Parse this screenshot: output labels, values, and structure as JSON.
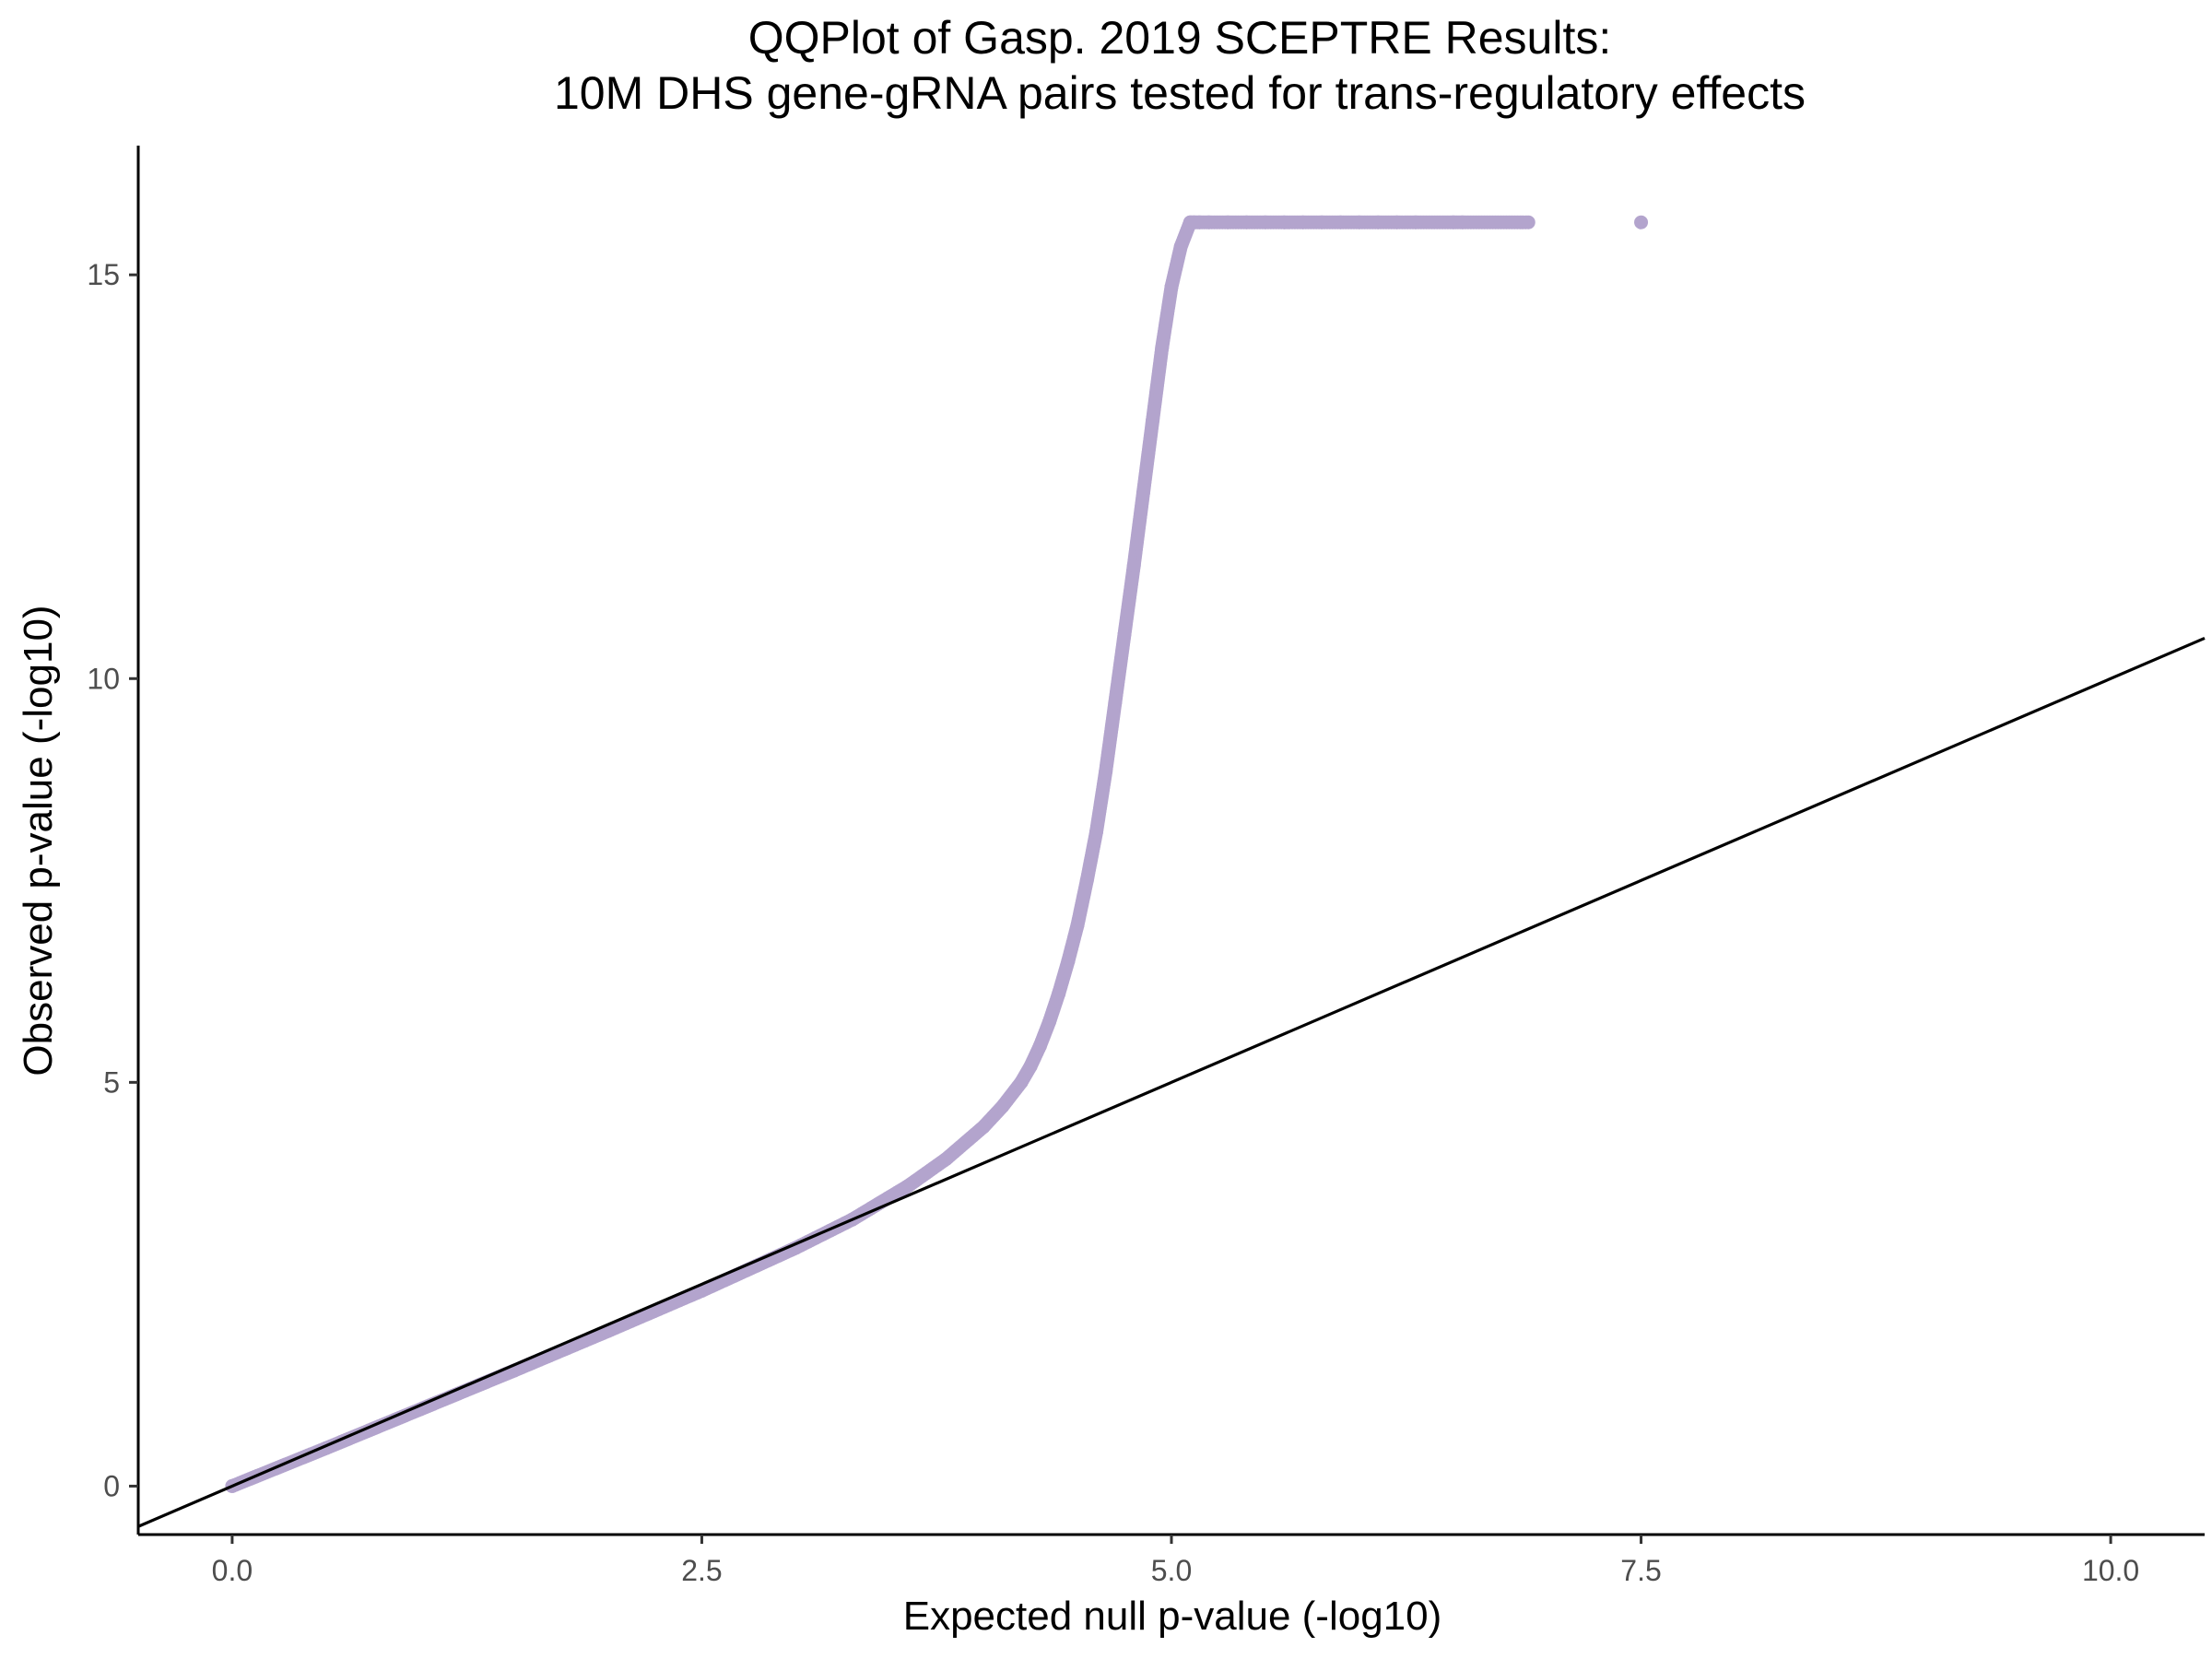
{
  "chart_data": {
    "type": "scatter",
    "title": [
      "QQPlot of Gasp. 2019 SCEPTRE Results:",
      "10M DHS gene-gRNA pairs tested for trans-regulatory effects"
    ],
    "xlabel": "Expected null p-value (-log10)",
    "ylabel": "Observed p-value (-log10)",
    "xlim": [
      -0.5,
      10.5
    ],
    "ylim": [
      -0.6,
      16.6
    ],
    "x_ticks": [
      0.0,
      2.5,
      5.0,
      7.5,
      10.0
    ],
    "x_tick_labels": [
      "0.0",
      "2.5",
      "5.0",
      "7.5",
      "10.0"
    ],
    "y_ticks": [
      0,
      5,
      10,
      15
    ],
    "y_tick_labels": [
      "0",
      "5",
      "10",
      "15"
    ],
    "grid": false,
    "legend": "none",
    "point_color": "#b3a4cd",
    "reference_line": {
      "slope": 1,
      "intercept": 0,
      "color": "#000000"
    },
    "series": [
      {
        "x": [
          0.0,
          0.5,
          1.0,
          1.5,
          2.0,
          2.5,
          3.0,
          3.3,
          3.6,
          3.8,
          4.0,
          4.1,
          4.2,
          4.25,
          4.3,
          4.35,
          4.4,
          4.45,
          4.5,
          4.55,
          4.6,
          4.65,
          4.7,
          4.75,
          4.8,
          4.85,
          4.9,
          4.95,
          5.0,
          5.05,
          5.1,
          5.12,
          5.15,
          5.2,
          5.3,
          5.4,
          5.5,
          5.6,
          5.7,
          5.8,
          5.9,
          6.0,
          6.1,
          6.2,
          6.3,
          6.5,
          6.55,
          6.9,
          7.5
        ],
        "y": [
          0.0,
          0.47,
          0.95,
          1.43,
          1.92,
          2.42,
          2.95,
          3.3,
          3.72,
          4.05,
          4.45,
          4.7,
          5.0,
          5.2,
          5.45,
          5.75,
          6.1,
          6.5,
          6.95,
          7.5,
          8.1,
          8.85,
          9.7,
          10.55,
          11.4,
          12.3,
          13.2,
          14.1,
          14.85,
          15.35,
          15.65,
          15.65,
          15.65,
          15.65,
          15.65,
          15.65,
          15.65,
          15.65,
          15.65,
          15.65,
          15.65,
          15.65,
          15.65,
          15.65,
          15.65,
          15.65,
          15.65,
          15.65,
          15.65
        ]
      }
    ]
  }
}
